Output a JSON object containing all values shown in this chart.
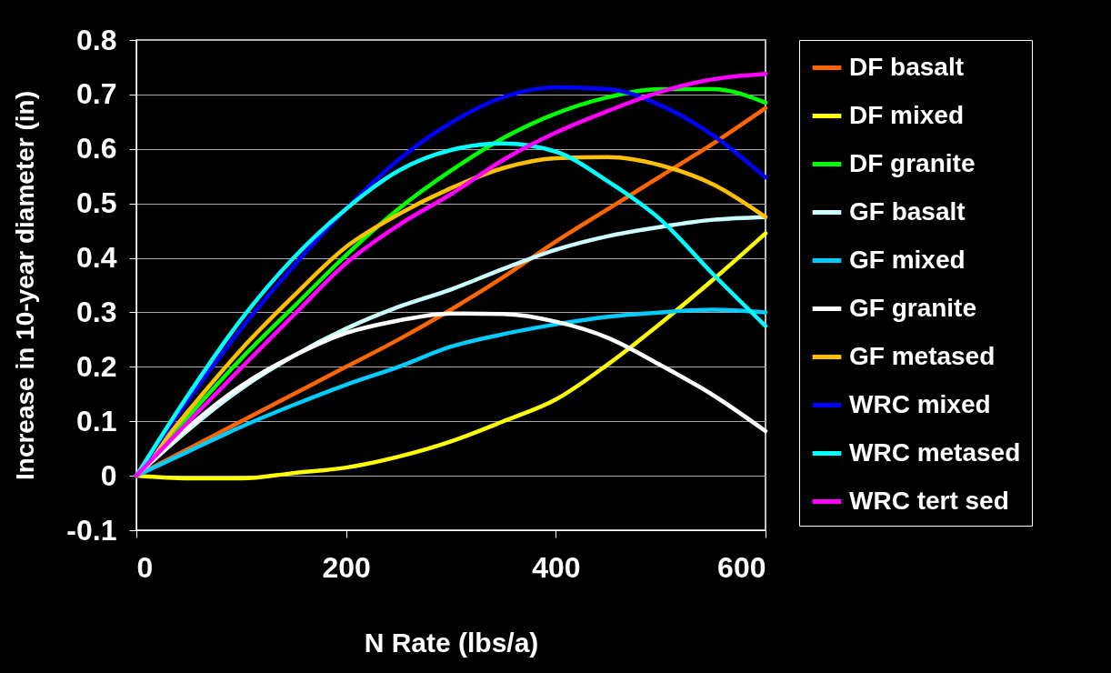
{
  "chart_data": {
    "type": "line",
    "xlabel": "N Rate (lbs/a)",
    "ylabel": "Increase in 10-year diameter (in)",
    "x": [
      0,
      50,
      100,
      150,
      200,
      250,
      300,
      350,
      400,
      450,
      500,
      550,
      600
    ],
    "xlim": [
      0,
      600
    ],
    "xticks": [
      0,
      200,
      400,
      600
    ],
    "ylim": [
      -0.1,
      0.8
    ],
    "yticks": [
      -0.1,
      0,
      0.1,
      0.2,
      0.3,
      0.4,
      0.5,
      0.6,
      0.7,
      0.8
    ],
    "grid": "y",
    "legend": "right",
    "line_style": "solid",
    "marker": "none",
    "series": [
      {
        "name": "DF basalt",
        "color": "#ff6600",
        "values": [
          0,
          0.05,
          0.1,
          0.15,
          0.2,
          0.25,
          0.305,
          0.365,
          0.43,
          0.49,
          0.55,
          0.61,
          0.675
        ]
      },
      {
        "name": "DF mixed",
        "color": "#ffff00",
        "values": [
          0,
          -0.005,
          -0.005,
          0.005,
          0.015,
          0.035,
          0.063,
          0.1,
          0.14,
          0.205,
          0.28,
          0.36,
          0.445
        ]
      },
      {
        "name": "DF granite",
        "color": "#00ff00",
        "values": [
          0,
          0.11,
          0.215,
          0.31,
          0.405,
          0.49,
          0.56,
          0.62,
          0.665,
          0.695,
          0.71,
          0.71,
          0.685
        ]
      },
      {
        "name": "GF basalt",
        "color": "#ccffff",
        "values": [
          0,
          0.085,
          0.16,
          0.22,
          0.27,
          0.31,
          0.342,
          0.38,
          0.415,
          0.44,
          0.457,
          0.47,
          0.475
        ]
      },
      {
        "name": "GF mixed",
        "color": "#00ccff",
        "values": [
          0,
          0.045,
          0.09,
          0.13,
          0.167,
          0.2,
          0.237,
          0.26,
          0.278,
          0.292,
          0.3,
          0.305,
          0.3
        ]
      },
      {
        "name": "GF granite",
        "color": "#ffffff",
        "values": [
          0,
          0.09,
          0.165,
          0.22,
          0.262,
          0.285,
          0.298,
          0.297,
          0.283,
          0.253,
          0.203,
          0.148,
          0.082
        ]
      },
      {
        "name": "GF metased",
        "color": "#ffc000",
        "values": [
          0,
          0.12,
          0.232,
          0.33,
          0.42,
          0.48,
          0.528,
          0.565,
          0.583,
          0.585,
          0.57,
          0.535,
          0.475
        ]
      },
      {
        "name": "WRC mixed",
        "color": "#0000ff",
        "values": [
          0,
          0.14,
          0.27,
          0.385,
          0.49,
          0.58,
          0.648,
          0.695,
          0.713,
          0.71,
          0.68,
          0.625,
          0.548
        ]
      },
      {
        "name": "WRC metased",
        "color": "#00ffff",
        "values": [
          0,
          0.15,
          0.287,
          0.4,
          0.49,
          0.56,
          0.598,
          0.61,
          0.595,
          0.54,
          0.47,
          0.37,
          0.275
        ]
      },
      {
        "name": "WRC tert sed",
        "color": "#ff00ff",
        "values": [
          0,
          0.1,
          0.198,
          0.295,
          0.39,
          0.46,
          0.517,
          0.58,
          0.63,
          0.67,
          0.705,
          0.728,
          0.738
        ]
      }
    ]
  }
}
